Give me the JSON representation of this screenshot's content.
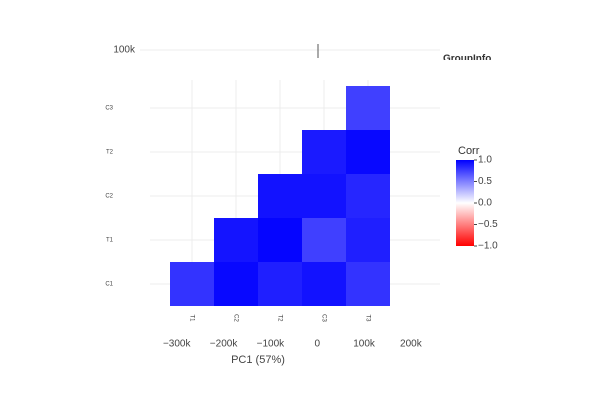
{
  "chart_data": [
    {
      "type": "heatmap",
      "x": [
        "T1",
        "C2",
        "T2",
        "C3",
        "T3"
      ],
      "y": [
        "C1",
        "T1",
        "C2",
        "T2",
        "C3"
      ],
      "z": [
        [
          0.8,
          0.97,
          0.88,
          0.93,
          0.8
        ],
        [
          null,
          0.92,
          0.98,
          0.75,
          0.88
        ],
        [
          null,
          null,
          0.93,
          0.93,
          0.85
        ],
        [
          null,
          null,
          null,
          0.9,
          0.97
        ],
        [
          null,
          null,
          null,
          null,
          0.75
        ]
      ],
      "colorscale": [
        "#ff0000",
        "#ffffff",
        "#0000ff"
      ],
      "zlim": [
        -1,
        1
      ],
      "colorbar_title": "Corr",
      "colorbar_ticks": [
        {
          "value": 1,
          "label": "1.0"
        },
        0.5,
        {
          "value": 0,
          "label": "0.0"
        },
        {
          "value": -0.5,
          "label": "−0.5"
        },
        {
          "value": -1,
          "label": "−1.0"
        }
      ],
      "grid": true
    },
    {
      "type": "scatter",
      "xlabel": "PC1 (57%)",
      "xlim": [
        -340000,
        260000
      ],
      "xticks": [
        {
          "value": -300000,
          "label": "−300k"
        },
        {
          "value": -200000,
          "label": "−200k"
        },
        {
          "value": -100000,
          "label": "−100k"
        },
        0,
        {
          "value": 100000,
          "label": "100k"
        },
        {
          "value": 200000,
          "label": "200k"
        }
      ],
      "yticks": [
        {
          "value": 100000,
          "label": "100k"
        }
      ],
      "legend_title": "GroupInfo"
    }
  ]
}
